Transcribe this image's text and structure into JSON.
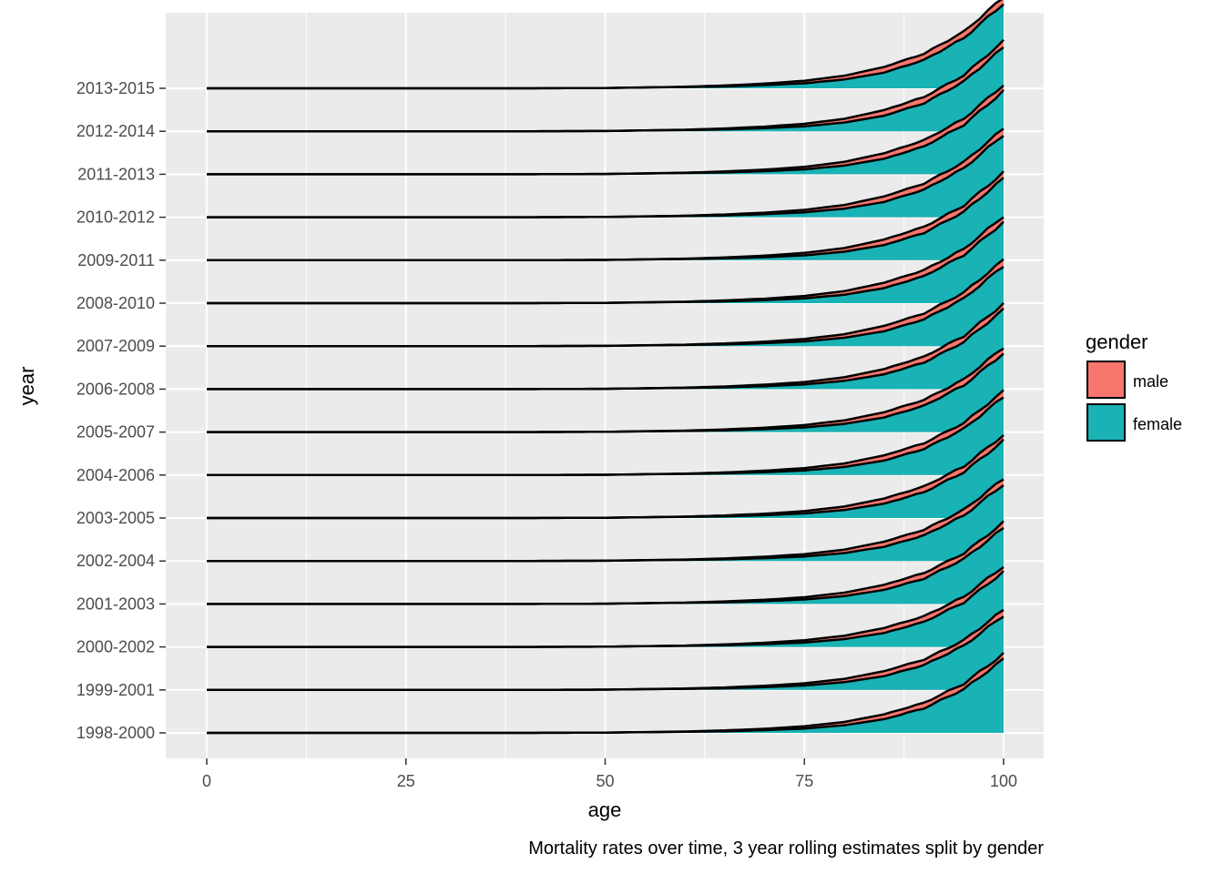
{
  "chart_data": {
    "type": "area",
    "subtype": "ridgeline",
    "title": "",
    "caption": "Mortality rates over time, 3 year rolling estimates split by gender",
    "xlabel": "age",
    "ylabel": "year",
    "xlim": [
      0,
      100
    ],
    "xticks": [
      "0",
      "25",
      "50",
      "75",
      "100"
    ],
    "categories": [
      "1998-2000",
      "1999-2001",
      "2000-2002",
      "2001-2003",
      "2002-2004",
      "2003-2005",
      "2004-2006",
      "2005-2007",
      "2006-2008",
      "2007-2009",
      "2008-2010",
      "2009-2011",
      "2010-2012",
      "2011-2013",
      "2012-2014",
      "2013-2015"
    ],
    "grid": true,
    "legend": {
      "title": "gender",
      "position": "right",
      "entries": [
        {
          "label": "male",
          "color": "#F8766D"
        },
        {
          "label": "female",
          "color": "#00BFC4"
        }
      ]
    },
    "colors": {
      "panel_background": "#EBEBEB",
      "grid": "#FFFFFF",
      "male": "#F8766D",
      "female": "#19B3B6",
      "outline": "#000000"
    },
    "series": [
      {
        "name": "female",
        "age": [
          0,
          40,
          50,
          60,
          65,
          70,
          75,
          80,
          85,
          90,
          95,
          100
        ],
        "values_1998_2000": [
          0.0,
          0.0,
          0.01,
          0.04,
          0.06,
          0.1,
          0.16,
          0.28,
          0.5,
          0.9,
          1.6,
          2.7
        ]
      },
      {
        "name": "male",
        "age": [
          0,
          40,
          50,
          60,
          65,
          70,
          75,
          80,
          85,
          90,
          95,
          100
        ],
        "values_1998_2000": [
          0.0,
          0.0,
          0.01,
          0.05,
          0.09,
          0.15,
          0.24,
          0.4,
          0.68,
          1.1,
          1.8,
          2.9
        ]
      }
    ]
  }
}
